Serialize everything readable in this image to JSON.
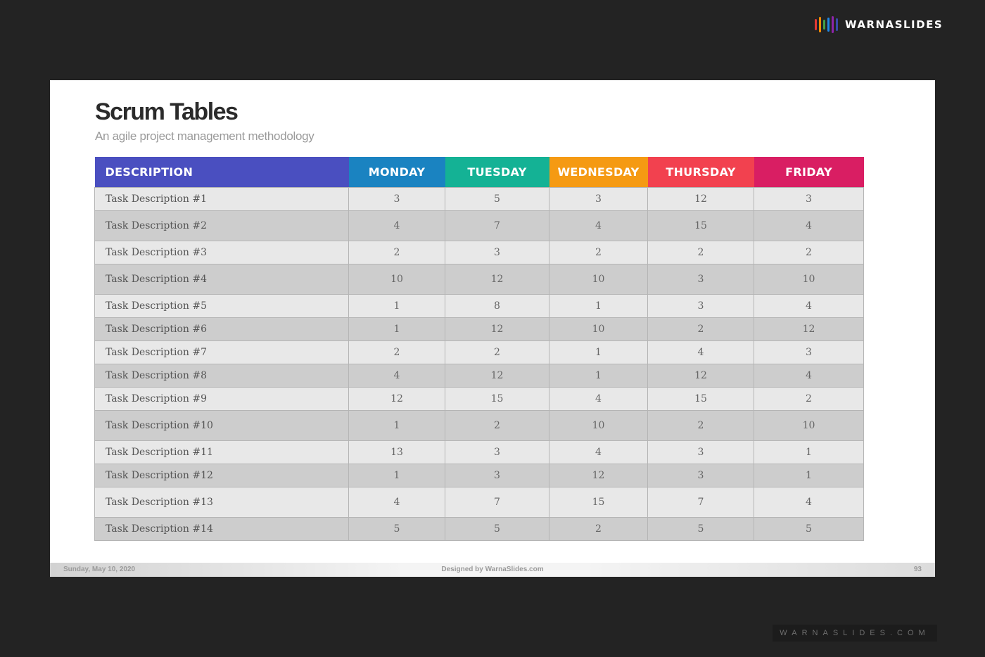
{
  "brand": {
    "name": "WARNASLIDES",
    "bar_colors": [
      "#e53935",
      "#fb8c00",
      "#43a047",
      "#1e88e5",
      "#8e24aa",
      "#3949ab"
    ]
  },
  "slide": {
    "title": "Scrum Tables",
    "subtitle": "An agile project management methodology"
  },
  "table": {
    "headers": [
      {
        "label": "DESCRIPTION",
        "color": "#4a4fc0"
      },
      {
        "label": "MONDAY",
        "color": "#1a83c1"
      },
      {
        "label": "TUESDAY",
        "color": "#14b295"
      },
      {
        "label": "WEDNESDAY",
        "color": "#f59a13"
      },
      {
        "label": "THURSDAY",
        "color": "#f2414f"
      },
      {
        "label": "FRIDAY",
        "color": "#d91e63"
      }
    ],
    "rows": [
      {
        "desc": "Task Description #1",
        "values": [
          "3",
          "5",
          "3",
          "12",
          "3"
        ]
      },
      {
        "desc": "Task Description #2",
        "values": [
          "4",
          "7",
          "4",
          "15",
          "4"
        ]
      },
      {
        "desc": "Task Description #3",
        "values": [
          "2",
          "3",
          "2",
          "2",
          "2"
        ]
      },
      {
        "desc": "Task Description #4",
        "values": [
          "10",
          "12",
          "10",
          "3",
          "10"
        ]
      },
      {
        "desc": "Task Description #5",
        "values": [
          "1",
          "8",
          "1",
          "3",
          "4"
        ]
      },
      {
        "desc": "Task Description #6",
        "values": [
          "1",
          "12",
          "10",
          "2",
          "12"
        ]
      },
      {
        "desc": "Task Description #7",
        "values": [
          "2",
          "2",
          "1",
          "4",
          "3"
        ]
      },
      {
        "desc": "Task Description #8",
        "values": [
          "4",
          "12",
          "1",
          "12",
          "4"
        ]
      },
      {
        "desc": "Task Description #9",
        "values": [
          "12",
          "15",
          "4",
          "15",
          "2"
        ]
      },
      {
        "desc": "Task Description #10",
        "values": [
          "1",
          "2",
          "10",
          "2",
          "10"
        ]
      },
      {
        "desc": "Task Description #11",
        "values": [
          "13",
          "3",
          "4",
          "3",
          "1"
        ]
      },
      {
        "desc": "Task Description #12",
        "values": [
          "1",
          "3",
          "12",
          "3",
          "1"
        ]
      },
      {
        "desc": "Task Description #13",
        "values": [
          "4",
          "7",
          "15",
          "7",
          "4"
        ]
      },
      {
        "desc": "Task Description #14",
        "values": [
          "5",
          "5",
          "2",
          "5",
          "5"
        ]
      }
    ]
  },
  "footer": {
    "date": "Sunday, May 10, 2020",
    "credit": "Designed by WarnaSlides.com",
    "page": "93"
  },
  "watermark": "WARNASLIDES.COM"
}
